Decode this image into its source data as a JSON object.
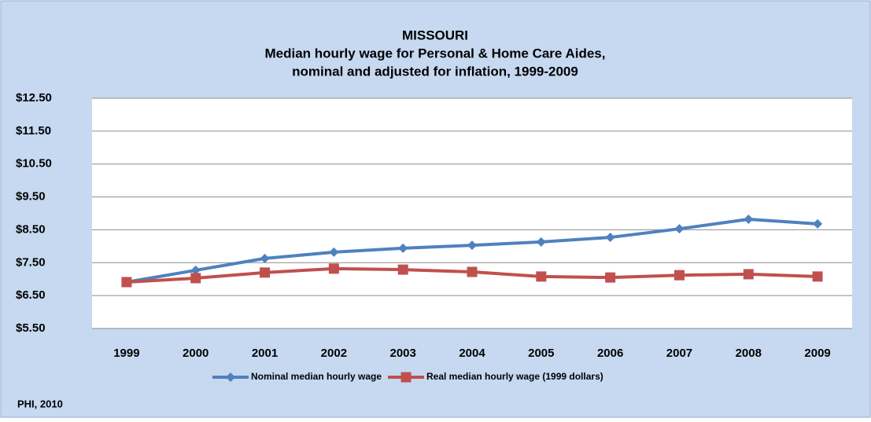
{
  "chart_data": {
    "type": "line",
    "title": [
      "MISSOURI",
      "Median hourly wage for Personal & Home Care Aides,",
      "nominal and adjusted for inflation, 1999-2009"
    ],
    "source": "PHI, 2010",
    "categories": [
      "1999",
      "2000",
      "2001",
      "2002",
      "2003",
      "2004",
      "2005",
      "2006",
      "2007",
      "2008",
      "2009"
    ],
    "series": [
      {
        "name": "Nominal median hourly wage",
        "color": "#4f81bd",
        "marker": "diamond",
        "values": [
          6.91,
          7.27,
          7.63,
          7.82,
          7.94,
          8.03,
          8.13,
          8.27,
          8.53,
          8.82,
          8.68
        ]
      },
      {
        "name": "Real median hourly wage (1999 dollars)",
        "color": "#c0504d",
        "marker": "square",
        "values": [
          6.91,
          7.03,
          7.2,
          7.32,
          7.29,
          7.22,
          7.08,
          7.05,
          7.12,
          7.15,
          7.08
        ]
      }
    ],
    "ylim": [
      5.5,
      12.5
    ],
    "yticks": [
      {
        "value": 5.5,
        "label": "$5.50"
      },
      {
        "value": 6.5,
        "label": "$6.50"
      },
      {
        "value": 7.5,
        "label": "$7.50"
      },
      {
        "value": 8.5,
        "label": "$8.50"
      },
      {
        "value": 9.5,
        "label": "$9.50"
      },
      {
        "value": 10.5,
        "label": "$10.50"
      },
      {
        "value": 11.5,
        "label": "$11.50"
      },
      {
        "value": 12.5,
        "label": "$12.50"
      }
    ],
    "grid": true,
    "legend": "bottom"
  }
}
